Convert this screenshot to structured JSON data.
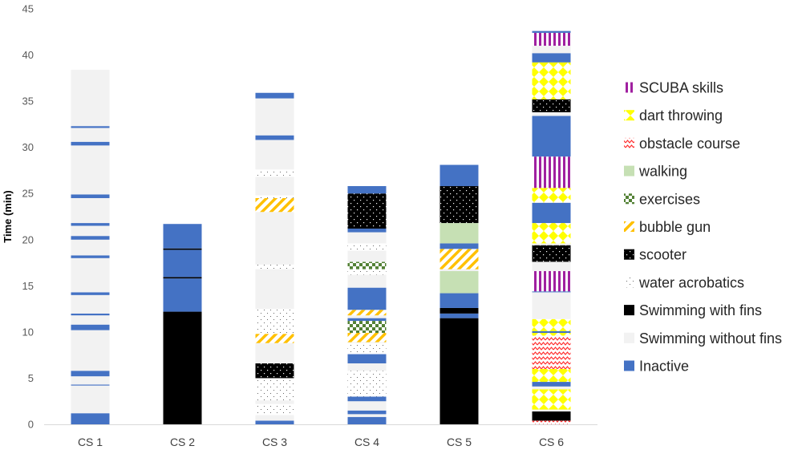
{
  "chart_data": {
    "type": "bar",
    "stacked": true,
    "title": "",
    "xlabel": "",
    "ylabel": "Time (min)",
    "ylim": [
      0,
      45
    ],
    "yticks": [
      0,
      5,
      10,
      15,
      20,
      25,
      30,
      35,
      40,
      45
    ],
    "grid": false,
    "legend_position": "right",
    "categories": [
      "CS 1",
      "CS 2",
      "CS 3",
      "CS 4",
      "CS 5",
      "CS 6"
    ],
    "legend": [
      {
        "name": "SCUBA skills",
        "color": "#a020a0",
        "pattern": "scuba"
      },
      {
        "name": "dart throwing",
        "color": "#ffff00",
        "pattern": "dart"
      },
      {
        "name": "obstacle course",
        "color": "#ff2a2a",
        "pattern": "obstacle"
      },
      {
        "name": "walking",
        "color": "#c6e0b4",
        "pattern": "walking"
      },
      {
        "name": "exercises",
        "color": "#538135",
        "pattern": "exercises"
      },
      {
        "name": "bubble gun",
        "color": "#ffc000",
        "pattern": "bubble"
      },
      {
        "name": "scooter",
        "color": "#000000",
        "pattern": "scooter"
      },
      {
        "name": "water acrobatics",
        "color": "#7f7f7f",
        "pattern": "acro"
      },
      {
        "name": "Swimming with fins",
        "color": "#000000",
        "pattern": "fins"
      },
      {
        "name": "Swimming without fins",
        "color": "#f2f2f2",
        "pattern": "nofins"
      },
      {
        "name": "Inactive",
        "color": "#4472c4",
        "pattern": "inactive"
      }
    ],
    "bars": [
      {
        "category": "CS 1",
        "segments": [
          {
            "activity": "Inactive",
            "start": 0,
            "end": 1.2
          },
          {
            "activity": "Swimming without fins",
            "start": 1.2,
            "end": 4.2
          },
          {
            "activity": "Inactive",
            "start": 4.2,
            "end": 4.3
          },
          {
            "activity": "Swimming without fins",
            "start": 4.3,
            "end": 5.2
          },
          {
            "activity": "Inactive",
            "start": 5.2,
            "end": 5.8
          },
          {
            "activity": "Swimming without fins",
            "start": 5.8,
            "end": 10.2
          },
          {
            "activity": "Inactive",
            "start": 10.2,
            "end": 10.8
          },
          {
            "activity": "Swimming without fins",
            "start": 10.8,
            "end": 11.8
          },
          {
            "activity": "Inactive",
            "start": 11.8,
            "end": 12.0
          },
          {
            "activity": "Swimming without fins",
            "start": 12.0,
            "end": 14.0
          },
          {
            "activity": "Inactive",
            "start": 14.0,
            "end": 14.3
          },
          {
            "activity": "Swimming without fins",
            "start": 14.3,
            "end": 18.0
          },
          {
            "activity": "Inactive",
            "start": 18.0,
            "end": 18.3
          },
          {
            "activity": "Swimming without fins",
            "start": 18.3,
            "end": 20.0
          },
          {
            "activity": "Inactive",
            "start": 20.0,
            "end": 20.4
          },
          {
            "activity": "Swimming without fins",
            "start": 20.4,
            "end": 21.5
          },
          {
            "activity": "Inactive",
            "start": 21.5,
            "end": 21.8
          },
          {
            "activity": "Swimming without fins",
            "start": 21.8,
            "end": 24.5
          },
          {
            "activity": "Inactive",
            "start": 24.5,
            "end": 24.9
          },
          {
            "activity": "Swimming without fins",
            "start": 24.9,
            "end": 30.2
          },
          {
            "activity": "Inactive",
            "start": 30.2,
            "end": 30.6
          },
          {
            "activity": "Swimming without fins",
            "start": 30.6,
            "end": 32.1
          },
          {
            "activity": "Inactive",
            "start": 32.1,
            "end": 32.3
          },
          {
            "activity": "Swimming without fins",
            "start": 32.3,
            "end": 38.4
          }
        ]
      },
      {
        "category": "CS 2",
        "segments": [
          {
            "activity": "Swimming with fins",
            "start": 0,
            "end": 12.2
          },
          {
            "activity": "Inactive",
            "start": 12.2,
            "end": 15.8
          },
          {
            "activity": "Swimming with fins",
            "start": 15.8,
            "end": 15.95
          },
          {
            "activity": "Inactive",
            "start": 15.95,
            "end": 18.9
          },
          {
            "activity": "Swimming with fins",
            "start": 18.9,
            "end": 19.05
          },
          {
            "activity": "Inactive",
            "start": 19.05,
            "end": 21.7
          }
        ]
      },
      {
        "category": "CS 3",
        "segments": [
          {
            "activity": "Inactive",
            "start": 0,
            "end": 0.4
          },
          {
            "activity": "Swimming without fins",
            "start": 0.4,
            "end": 1.0
          },
          {
            "activity": "water acrobatics",
            "start": 1.0,
            "end": 2.2
          },
          {
            "activity": "Swimming without fins",
            "start": 2.2,
            "end": 2.6
          },
          {
            "activity": "water acrobatics",
            "start": 2.6,
            "end": 5.0
          },
          {
            "activity": "scooter",
            "start": 5.0,
            "end": 6.6
          },
          {
            "activity": "Swimming without fins",
            "start": 6.6,
            "end": 8.8
          },
          {
            "activity": "bubble gun",
            "start": 8.8,
            "end": 9.8
          },
          {
            "activity": "water acrobatics",
            "start": 9.8,
            "end": 12.5
          },
          {
            "activity": "Swimming without fins",
            "start": 12.5,
            "end": 16.8
          },
          {
            "activity": "water acrobatics",
            "start": 16.8,
            "end": 17.3
          },
          {
            "activity": "Swimming without fins",
            "start": 17.3,
            "end": 23.0
          },
          {
            "activity": "bubble gun",
            "start": 23.0,
            "end": 24.5
          },
          {
            "activity": "water acrobatics",
            "start": 24.5,
            "end": 24.8
          },
          {
            "activity": "Swimming without fins",
            "start": 24.8,
            "end": 26.8
          },
          {
            "activity": "water acrobatics",
            "start": 26.8,
            "end": 27.6
          },
          {
            "activity": "Swimming without fins",
            "start": 27.6,
            "end": 30.8
          },
          {
            "activity": "Inactive",
            "start": 30.8,
            "end": 31.3
          },
          {
            "activity": "Swimming without fins",
            "start": 31.3,
            "end": 35.3
          },
          {
            "activity": "Inactive",
            "start": 35.3,
            "end": 35.9
          }
        ]
      },
      {
        "category": "CS 4",
        "segments": [
          {
            "activity": "Inactive",
            "start": 0,
            "end": 0.8
          },
          {
            "activity": "Swimming without fins",
            "start": 0.8,
            "end": 1.1
          },
          {
            "activity": "Inactive",
            "start": 1.1,
            "end": 1.5
          },
          {
            "activity": "Swimming without fins",
            "start": 1.5,
            "end": 2.5
          },
          {
            "activity": "Inactive",
            "start": 2.5,
            "end": 3.0
          },
          {
            "activity": "water acrobatics",
            "start": 3.0,
            "end": 5.8
          },
          {
            "activity": "Swimming without fins",
            "start": 5.8,
            "end": 6.6
          },
          {
            "activity": "Inactive",
            "start": 6.6,
            "end": 7.6
          },
          {
            "activity": "water acrobatics",
            "start": 7.6,
            "end": 8.8
          },
          {
            "activity": "Swimming without fins",
            "start": 8.8,
            "end": 8.9
          },
          {
            "activity": "bubble gun",
            "start": 8.9,
            "end": 9.9
          },
          {
            "activity": "exercises",
            "start": 9.9,
            "end": 11.2
          },
          {
            "activity": "Inactive",
            "start": 11.2,
            "end": 11.5
          },
          {
            "activity": "Swimming without fins",
            "start": 11.5,
            "end": 11.8
          },
          {
            "activity": "bubble gun",
            "start": 11.8,
            "end": 12.4
          },
          {
            "activity": "Inactive",
            "start": 12.4,
            "end": 14.8
          },
          {
            "activity": "Swimming without fins",
            "start": 14.8,
            "end": 16.2
          },
          {
            "activity": "water acrobatics",
            "start": 16.2,
            "end": 16.8
          },
          {
            "activity": "exercises",
            "start": 16.8,
            "end": 17.6
          },
          {
            "activity": "Swimming without fins",
            "start": 17.6,
            "end": 18.8
          },
          {
            "activity": "water acrobatics",
            "start": 18.8,
            "end": 19.6
          },
          {
            "activity": "Swimming without fins",
            "start": 19.6,
            "end": 20.8
          },
          {
            "activity": "Inactive",
            "start": 20.8,
            "end": 21.2
          },
          {
            "activity": "scooter",
            "start": 21.2,
            "end": 25.0
          },
          {
            "activity": "Inactive",
            "start": 25.0,
            "end": 25.8
          }
        ]
      },
      {
        "category": "CS 5",
        "segments": [
          {
            "activity": "Swimming with fins",
            "start": 0,
            "end": 11.5
          },
          {
            "activity": "Inactive",
            "start": 11.5,
            "end": 12.0
          },
          {
            "activity": "Swimming with fins",
            "start": 12.0,
            "end": 12.6
          },
          {
            "activity": "Inactive",
            "start": 12.6,
            "end": 14.2
          },
          {
            "activity": "walking",
            "start": 14.2,
            "end": 16.6
          },
          {
            "activity": "Swimming without fins",
            "start": 16.6,
            "end": 16.8
          },
          {
            "activity": "bubble gun",
            "start": 16.8,
            "end": 19.0
          },
          {
            "activity": "Inactive",
            "start": 19.0,
            "end": 19.6
          },
          {
            "activity": "walking",
            "start": 19.6,
            "end": 21.8
          },
          {
            "activity": "scooter",
            "start": 21.8,
            "end": 25.8
          },
          {
            "activity": "Inactive",
            "start": 25.8,
            "end": 28.1
          }
        ]
      },
      {
        "category": "CS 6",
        "segments": [
          {
            "activity": "obstacle course",
            "start": 0,
            "end": 0.4
          },
          {
            "activity": "Swimming with fins",
            "start": 0.4,
            "end": 1.4
          },
          {
            "activity": "Swimming without fins",
            "start": 1.4,
            "end": 1.6
          },
          {
            "activity": "dart throwing",
            "start": 1.6,
            "end": 3.8
          },
          {
            "activity": "Swimming without fins",
            "start": 3.8,
            "end": 4.1
          },
          {
            "activity": "Inactive",
            "start": 4.1,
            "end": 4.6
          },
          {
            "activity": "dart throwing",
            "start": 4.6,
            "end": 6.0
          },
          {
            "activity": "obstacle course",
            "start": 6.0,
            "end": 9.6
          },
          {
            "activity": "dart throwing",
            "start": 9.6,
            "end": 9.9
          },
          {
            "activity": "Inactive",
            "start": 9.9,
            "end": 10.1
          },
          {
            "activity": "dart throwing",
            "start": 10.1,
            "end": 11.4
          },
          {
            "activity": "Swimming without fins",
            "start": 11.4,
            "end": 14.3
          },
          {
            "activity": "Inactive",
            "start": 14.3,
            "end": 14.4
          },
          {
            "activity": "SCUBA skills",
            "start": 14.4,
            "end": 16.6
          },
          {
            "activity": "Swimming without fins",
            "start": 16.6,
            "end": 17.6
          },
          {
            "activity": "scooter",
            "start": 17.6,
            "end": 19.4
          },
          {
            "activity": "Swimming without fins",
            "start": 19.4,
            "end": 19.6
          },
          {
            "activity": "dart throwing",
            "start": 19.6,
            "end": 21.8
          },
          {
            "activity": "Inactive",
            "start": 21.8,
            "end": 24.0
          },
          {
            "activity": "dart throwing",
            "start": 24.0,
            "end": 25.6
          },
          {
            "activity": "SCUBA skills",
            "start": 25.6,
            "end": 29.0
          },
          {
            "activity": "Inactive",
            "start": 29.0,
            "end": 33.4
          },
          {
            "activity": "Swimming without fins",
            "start": 33.4,
            "end": 33.8
          },
          {
            "activity": "scooter",
            "start": 33.8,
            "end": 35.2
          },
          {
            "activity": "dart throwing",
            "start": 35.2,
            "end": 39.2
          },
          {
            "activity": "Inactive",
            "start": 39.2,
            "end": 40.2
          },
          {
            "activity": "Swimming without fins",
            "start": 40.2,
            "end": 41.0
          },
          {
            "activity": "SCUBA skills",
            "start": 41.0,
            "end": 42.4
          },
          {
            "activity": "Inactive",
            "start": 42.4,
            "end": 42.6
          }
        ]
      }
    ]
  }
}
